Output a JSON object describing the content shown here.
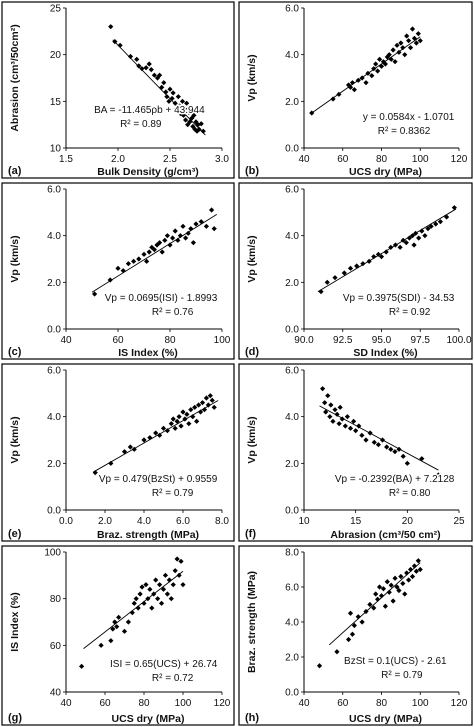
{
  "chart_data": [
    {
      "type": "scatter",
      "panel": "(a)",
      "xlabel": "Bulk Density (g/cm³)",
      "ylabel": "Abrasion (cm³/50cm²)",
      "xlim": [
        1.5,
        3.0
      ],
      "ylim": [
        10,
        25
      ],
      "xticks": [
        "1.5",
        "2.0",
        "2.5",
        "3.0"
      ],
      "yticks": [
        "10",
        "15",
        "20",
        "25"
      ],
      "equation": "BA = -11.465ρb + 43.944",
      "r2": "R² = 0.89",
      "fit": {
        "slope": -11.465,
        "intercept": 43.944,
        "x": [
          1.95,
          2.84
        ]
      },
      "points": [
        [
          1.93,
          23.0
        ],
        [
          1.97,
          21.4
        ],
        [
          2.02,
          21.0
        ],
        [
          2.12,
          19.8
        ],
        [
          2.18,
          19.5
        ],
        [
          2.2,
          18.8
        ],
        [
          2.23,
          18.5
        ],
        [
          2.27,
          18.6
        ],
        [
          2.3,
          19.0
        ],
        [
          2.32,
          18.4
        ],
        [
          2.35,
          17.8
        ],
        [
          2.38,
          17.5
        ],
        [
          2.4,
          17.8
        ],
        [
          2.42,
          16.5
        ],
        [
          2.44,
          17.0
        ],
        [
          2.46,
          16.0
        ],
        [
          2.47,
          15.5
        ],
        [
          2.49,
          15.0
        ],
        [
          2.5,
          16.3
        ],
        [
          2.52,
          15.3
        ],
        [
          2.53,
          15.9
        ],
        [
          2.55,
          14.8
        ],
        [
          2.56,
          14.2
        ],
        [
          2.58,
          15.5
        ],
        [
          2.59,
          14.5
        ],
        [
          2.6,
          13.7
        ],
        [
          2.61,
          14.0
        ],
        [
          2.62,
          15.0
        ],
        [
          2.63,
          13.5
        ],
        [
          2.64,
          14.2
        ],
        [
          2.65,
          13.0
        ],
        [
          2.66,
          14.8
        ],
        [
          2.67,
          12.5
        ],
        [
          2.68,
          13.8
        ],
        [
          2.69,
          12.8
        ],
        [
          2.7,
          14.0
        ],
        [
          2.71,
          13.2
        ],
        [
          2.72,
          12.3
        ],
        [
          2.73,
          13.5
        ],
        [
          2.74,
          12.0
        ],
        [
          2.75,
          12.8
        ],
        [
          2.76,
          11.8
        ],
        [
          2.77,
          12.5
        ],
        [
          2.78,
          12.0
        ],
        [
          2.8,
          12.6
        ],
        [
          2.82,
          11.8
        ]
      ]
    },
    {
      "type": "scatter",
      "panel": "(b)",
      "xlabel": "UCS dry (MPa)",
      "ylabel": "Vp (km/s)",
      "xlim": [
        40,
        120
      ],
      "ylim": [
        0.0,
        6.0
      ],
      "xticks": [
        "40",
        "60",
        "80",
        "100",
        "120"
      ],
      "yticks": [
        "0.0",
        "2.0",
        "4.0",
        "6.0"
      ],
      "equation": "y = 0.0584x - 1.0701",
      "r2": "R² = 0.8362",
      "fit": {
        "slope": 0.0584,
        "intercept": -1.0701,
        "x": [
          44,
          100
        ]
      },
      "points": [
        [
          44,
          1.5
        ],
        [
          55,
          2.1
        ],
        [
          58,
          2.3
        ],
        [
          63,
          2.7
        ],
        [
          64,
          2.6
        ],
        [
          65,
          2.8
        ],
        [
          66,
          2.5
        ],
        [
          68,
          2.9
        ],
        [
          70,
          3.0
        ],
        [
          72,
          2.8
        ],
        [
          73,
          3.2
        ],
        [
          75,
          3.1
        ],
        [
          76,
          3.4
        ],
        [
          77,
          3.6
        ],
        [
          78,
          3.3
        ],
        [
          79,
          3.8
        ],
        [
          80,
          3.5
        ],
        [
          81,
          3.7
        ],
        [
          82,
          3.6
        ],
        [
          83,
          3.9
        ],
        [
          84,
          4.0
        ],
        [
          85,
          3.8
        ],
        [
          86,
          4.2
        ],
        [
          87,
          3.7
        ],
        [
          88,
          4.4
        ],
        [
          89,
          4.1
        ],
        [
          90,
          4.5
        ],
        [
          91,
          4.3
        ],
        [
          92,
          4.0
        ],
        [
          93,
          4.8
        ],
        [
          94,
          4.6
        ],
        [
          95,
          4.3
        ],
        [
          96,
          5.1
        ],
        [
          97,
          4.7
        ],
        [
          98,
          4.5
        ],
        [
          99,
          4.9
        ],
        [
          100,
          4.6
        ]
      ]
    },
    {
      "type": "scatter",
      "panel": "(c)",
      "xlabel": "IS Index (%)",
      "ylabel": "Vp (km/s)",
      "xlim": [
        40,
        100
      ],
      "ylim": [
        0.0,
        6.0
      ],
      "xticks": [
        "40",
        "60",
        "80",
        "100"
      ],
      "yticks": [
        "0.0",
        "2.0",
        "4.0",
        "6.0"
      ],
      "equation": "Vp = 0.0695(ISI) - 1.8993",
      "r2": "R² = 0.76",
      "fit": {
        "slope": 0.0695,
        "intercept": -1.8993,
        "x": [
          50,
          98
        ]
      },
      "points": [
        [
          51,
          1.5
        ],
        [
          57,
          2.1
        ],
        [
          60,
          2.6
        ],
        [
          62,
          2.5
        ],
        [
          64,
          2.8
        ],
        [
          66,
          2.9
        ],
        [
          68,
          3.0
        ],
        [
          70,
          3.2
        ],
        [
          71,
          2.9
        ],
        [
          72,
          3.3
        ],
        [
          73,
          3.5
        ],
        [
          74,
          3.4
        ],
        [
          75,
          3.6
        ],
        [
          76,
          3.7
        ],
        [
          77,
          3.3
        ],
        [
          78,
          3.8
        ],
        [
          79,
          4.0
        ],
        [
          80,
          3.6
        ],
        [
          81,
          3.9
        ],
        [
          82,
          4.2
        ],
        [
          83,
          3.8
        ],
        [
          84,
          4.0
        ],
        [
          85,
          4.4
        ],
        [
          86,
          3.9
        ],
        [
          87,
          4.1
        ],
        [
          88,
          4.3
        ],
        [
          89,
          3.7
        ],
        [
          90,
          4.5
        ],
        [
          92,
          4.6
        ],
        [
          94,
          4.4
        ],
        [
          96,
          5.1
        ],
        [
          97,
          4.3
        ]
      ]
    },
    {
      "type": "scatter",
      "panel": "(d)",
      "xlabel": "SD Index (%)",
      "ylabel": "Vp (km/s)",
      "xlim": [
        90.0,
        100.0
      ],
      "ylim": [
        0.0,
        6.0
      ],
      "xticks": [
        "90.0",
        "92.5",
        "95.0",
        "97.5",
        "100.0"
      ],
      "yticks": [
        "0.0",
        "2.0",
        "4.0",
        "6.0"
      ],
      "equation": "Vp = 0.3975(SDI) - 34.53",
      "r2": "R² = 0.92",
      "fit": {
        "slope": 0.3975,
        "intercept": -34.53,
        "x": [
          90.9,
          99.8
        ]
      },
      "points": [
        [
          91.1,
          1.6
        ],
        [
          91.5,
          2.0
        ],
        [
          92.0,
          2.2
        ],
        [
          92.6,
          2.4
        ],
        [
          93.0,
          2.6
        ],
        [
          93.4,
          2.7
        ],
        [
          93.8,
          2.8
        ],
        [
          94.2,
          2.9
        ],
        [
          94.5,
          3.1
        ],
        [
          94.8,
          3.2
        ],
        [
          95.0,
          3.1
        ],
        [
          95.3,
          3.3
        ],
        [
          95.6,
          3.5
        ],
        [
          95.9,
          3.6
        ],
        [
          96.2,
          3.5
        ],
        [
          96.4,
          3.8
        ],
        [
          96.6,
          3.7
        ],
        [
          96.8,
          3.9
        ],
        [
          97.0,
          4.0
        ],
        [
          97.1,
          3.6
        ],
        [
          97.2,
          4.1
        ],
        [
          97.4,
          3.9
        ],
        [
          97.6,
          4.2
        ],
        [
          97.8,
          4.0
        ],
        [
          98.0,
          4.3
        ],
        [
          98.2,
          4.4
        ],
        [
          98.5,
          4.5
        ],
        [
          98.8,
          4.6
        ],
        [
          99.2,
          4.8
        ],
        [
          99.7,
          5.2
        ]
      ]
    },
    {
      "type": "scatter",
      "panel": "(e)",
      "xlabel": "Braz. strength (MPa)",
      "ylabel": "Vp (km/s)",
      "xlim": [
        0.0,
        8.0
      ],
      "ylim": [
        0.0,
        6.0
      ],
      "xticks": [
        "0.0",
        "2.0",
        "4.0",
        "6.0",
        "8.0"
      ],
      "yticks": [
        "0.0",
        "2.0",
        "4.0",
        "6.0"
      ],
      "equation": "Vp = 0.479(BzSt) + 0.9559",
      "r2": "R² = 0.79",
      "fit": {
        "slope": 0.479,
        "intercept": 0.9559,
        "x": [
          1.4,
          7.8
        ]
      },
      "points": [
        [
          1.5,
          1.6
        ],
        [
          2.3,
          2.0
        ],
        [
          3.0,
          2.5
        ],
        [
          3.3,
          2.7
        ],
        [
          3.5,
          2.6
        ],
        [
          4.0,
          3.0
        ],
        [
          4.3,
          3.1
        ],
        [
          4.6,
          3.3
        ],
        [
          4.8,
          3.2
        ],
        [
          5.0,
          3.5
        ],
        [
          5.2,
          3.4
        ],
        [
          5.4,
          3.7
        ],
        [
          5.5,
          3.9
        ],
        [
          5.6,
          3.5
        ],
        [
          5.7,
          3.8
        ],
        [
          5.8,
          4.0
        ],
        [
          5.9,
          3.6
        ],
        [
          6.0,
          4.2
        ],
        [
          6.1,
          3.9
        ],
        [
          6.2,
          4.1
        ],
        [
          6.3,
          3.7
        ],
        [
          6.4,
          4.3
        ],
        [
          6.5,
          4.0
        ],
        [
          6.6,
          4.4
        ],
        [
          6.7,
          3.8
        ],
        [
          6.8,
          4.5
        ],
        [
          6.9,
          4.2
        ],
        [
          7.0,
          4.6
        ],
        [
          7.1,
          4.3
        ],
        [
          7.2,
          4.8
        ],
        [
          7.3,
          4.5
        ],
        [
          7.4,
          4.9
        ],
        [
          7.5,
          4.7
        ],
        [
          7.6,
          4.4
        ]
      ]
    },
    {
      "type": "scatter",
      "panel": "(f)",
      "xlabel": "Abrasion (cm³/50 cm²)",
      "ylabel": "Vp (km/s)",
      "xlim": [
        10,
        25
      ],
      "ylim": [
        0.0,
        6.0
      ],
      "xticks": [
        "10",
        "15",
        "20",
        "25"
      ],
      "yticks": [
        "0.0",
        "2.0",
        "4.0",
        "6.0"
      ],
      "equation": "Vp = -0.2392(BA) + 7.2128",
      "r2": "R² = 0.80",
      "fit": {
        "slope": -0.2392,
        "intercept": 7.2128,
        "x": [
          11.5,
          23.0
        ]
      },
      "points": [
        [
          11.8,
          5.2
        ],
        [
          12.0,
          4.6
        ],
        [
          12.1,
          4.2
        ],
        [
          12.3,
          4.9
        ],
        [
          12.5,
          4.0
        ],
        [
          12.6,
          4.5
        ],
        [
          12.8,
          3.8
        ],
        [
          13.0,
          4.3
        ],
        [
          13.2,
          4.1
        ],
        [
          13.4,
          3.7
        ],
        [
          13.5,
          4.4
        ],
        [
          13.7,
          3.9
        ],
        [
          14.0,
          3.6
        ],
        [
          14.2,
          4.0
        ],
        [
          14.5,
          3.5
        ],
        [
          14.8,
          3.8
        ],
        [
          15.0,
          3.4
        ],
        [
          15.3,
          3.6
        ],
        [
          15.6,
          3.2
        ],
        [
          16.0,
          3.0
        ],
        [
          16.4,
          3.3
        ],
        [
          16.8,
          2.9
        ],
        [
          17.2,
          2.8
        ],
        [
          17.6,
          3.0
        ],
        [
          18.0,
          2.7
        ],
        [
          18.4,
          2.6
        ],
        [
          18.8,
          2.5
        ],
        [
          19.2,
          2.6
        ],
        [
          19.6,
          2.3
        ],
        [
          20.0,
          2.0
        ],
        [
          21.4,
          2.2
        ],
        [
          23.0,
          1.5
        ]
      ]
    },
    {
      "type": "scatter",
      "panel": "(g)",
      "xlabel": "UCS dry (MPa)",
      "ylabel": "IS Index (%)",
      "xlim": [
        40,
        120
      ],
      "ylim": [
        40,
        100
      ],
      "xticks": [
        "40",
        "60",
        "80",
        "100",
        "120"
      ],
      "yticks": [
        "40",
        "60",
        "80",
        "100"
      ],
      "equation": "ISI = 0.65(UCS) + 26.74",
      "r2": "R² = 0.72",
      "fit": {
        "slope": 0.65,
        "intercept": 26.74,
        "x": [
          49,
          100
        ]
      },
      "points": [
        [
          48,
          51
        ],
        [
          58,
          60
        ],
        [
          63,
          62
        ],
        [
          64,
          67
        ],
        [
          65,
          70
        ],
        [
          66,
          68
        ],
        [
          67,
          72
        ],
        [
          70,
          66
        ],
        [
          72,
          70
        ],
        [
          74,
          74
        ],
        [
          75,
          78
        ],
        [
          76,
          80
        ],
        [
          77,
          76
        ],
        [
          78,
          82
        ],
        [
          79,
          85
        ],
        [
          80,
          78
        ],
        [
          81,
          86
        ],
        [
          82,
          80
        ],
        [
          83,
          84
        ],
        [
          84,
          76
        ],
        [
          85,
          82
        ],
        [
          86,
          88
        ],
        [
          87,
          80
        ],
        [
          88,
          86
        ],
        [
          89,
          78
        ],
        [
          90,
          84
        ],
        [
          91,
          90
        ],
        [
          92,
          82
        ],
        [
          93,
          88
        ],
        [
          94,
          80
        ],
        [
          95,
          86
        ],
        [
          96,
          92
        ],
        [
          97,
          97
        ],
        [
          98,
          90
        ],
        [
          99,
          96
        ],
        [
          100,
          86
        ]
      ]
    },
    {
      "type": "scatter",
      "panel": "(h)",
      "xlabel": "UCS dry (MPa)",
      "ylabel": "Braz. strength (MPa)",
      "xlim": [
        40,
        120
      ],
      "ylim": [
        0.0,
        8.0
      ],
      "xticks": [
        "40",
        "60",
        "80",
        "100",
        "120"
      ],
      "yticks": [
        "0.0",
        "2.0",
        "4.0",
        "6.0",
        "8.0"
      ],
      "equation": "BzSt = 0.1(UCS) - 2.61",
      "r2": "R² = 0.79",
      "fit": {
        "slope": 0.1,
        "intercept": -2.61,
        "x": [
          53,
          100
        ]
      },
      "points": [
        [
          48,
          1.5
        ],
        [
          57,
          2.3
        ],
        [
          63,
          3.0
        ],
        [
          64,
          4.5
        ],
        [
          65,
          3.3
        ],
        [
          66,
          3.8
        ],
        [
          68,
          4.3
        ],
        [
          70,
          4.0
        ],
        [
          72,
          4.6
        ],
        [
          74,
          5.0
        ],
        [
          76,
          4.8
        ],
        [
          77,
          5.6
        ],
        [
          78,
          5.3
        ],
        [
          79,
          6.0
        ],
        [
          80,
          5.5
        ],
        [
          81,
          5.9
        ],
        [
          82,
          4.9
        ],
        [
          83,
          6.3
        ],
        [
          84,
          5.7
        ],
        [
          85,
          6.1
        ],
        [
          86,
          5.2
        ],
        [
          87,
          6.5
        ],
        [
          88,
          6.0
        ],
        [
          89,
          5.8
        ],
        [
          90,
          6.6
        ],
        [
          91,
          6.2
        ],
        [
          92,
          5.6
        ],
        [
          93,
          6.8
        ],
        [
          94,
          6.4
        ],
        [
          95,
          7.0
        ],
        [
          96,
          6.6
        ],
        [
          97,
          7.2
        ],
        [
          98,
          6.9
        ],
        [
          99,
          7.5
        ],
        [
          100,
          7.0
        ]
      ]
    }
  ]
}
